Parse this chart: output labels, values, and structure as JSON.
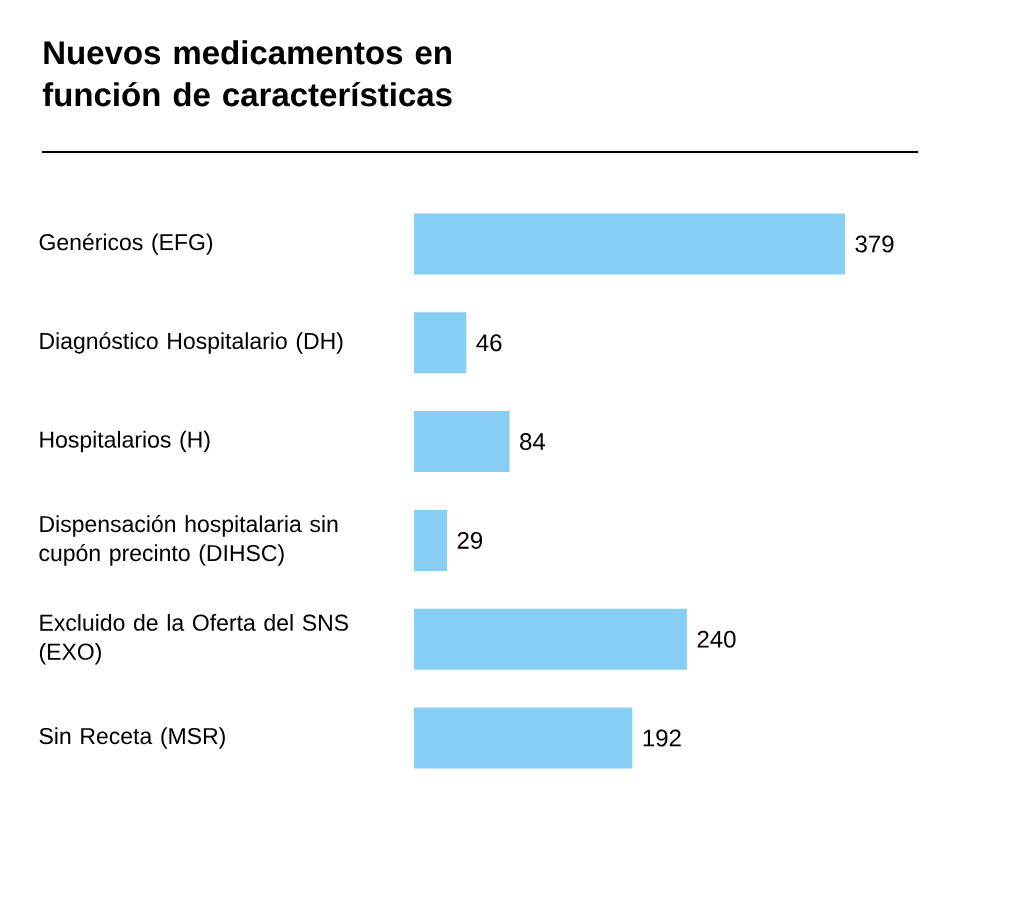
{
  "chart_data": {
    "type": "bar",
    "orientation": "horizontal",
    "title": "Nuevos medicamentos en función de características",
    "categories": [
      "Genéricos (EFG)",
      "Diagnóstico Hospitalario (DH)",
      "Hospitalarios (H)",
      "Dispensación hospitalaria sin cupón precinto (DIHSC)",
      "Excluido de la Oferta del SNS (EXO)",
      "Sin Receta (MSR)"
    ],
    "values": [
      379,
      46,
      84,
      29,
      240,
      192
    ],
    "color": "#87cef5",
    "data_labels": true
  }
}
